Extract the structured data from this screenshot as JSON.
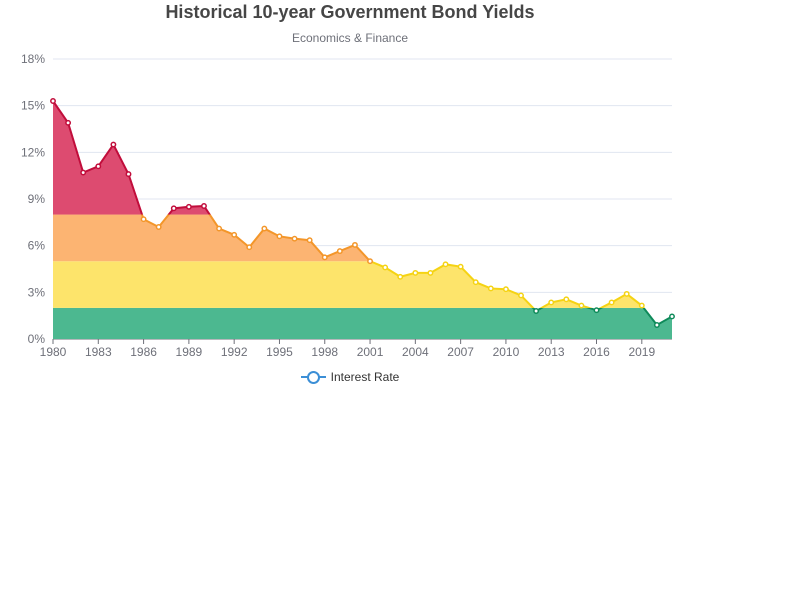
{
  "chart_data": {
    "type": "area",
    "title": "Historical 10-year Government Bond Yields",
    "subtitle": "Economics & Finance",
    "xlabel": "",
    "ylabel": "",
    "x": [
      1980,
      1981,
      1982,
      1983,
      1984,
      1985,
      1986,
      1987,
      1988,
      1989,
      1990,
      1991,
      1992,
      1993,
      1994,
      1995,
      1996,
      1997,
      1998,
      1999,
      2000,
      2001,
      2002,
      2003,
      2004,
      2005,
      2006,
      2007,
      2008,
      2009,
      2010,
      2011,
      2012,
      2013,
      2014,
      2015,
      2016,
      2017,
      2018,
      2019,
      2020,
      2021
    ],
    "series": [
      {
        "name": "Interest Rate",
        "values": [
          15.3,
          13.9,
          10.7,
          11.1,
          12.5,
          10.6,
          7.7,
          7.2,
          8.4,
          8.5,
          8.55,
          7.1,
          6.7,
          5.9,
          7.1,
          6.6,
          6.45,
          6.35,
          5.25,
          5.65,
          6.05,
          5.0,
          4.6,
          4.0,
          4.25,
          4.25,
          4.8,
          4.65,
          3.65,
          3.25,
          3.2,
          2.8,
          1.8,
          2.35,
          2.55,
          2.15,
          1.85,
          2.35,
          2.9,
          2.15,
          0.9,
          1.45
        ]
      }
    ],
    "xlim": [
      1980,
      2021
    ],
    "ylim": [
      0,
      18
    ],
    "xticks": [
      "1980",
      "1983",
      "1986",
      "1989",
      "1992",
      "1995",
      "1998",
      "2001",
      "2004",
      "2007",
      "2010",
      "2013",
      "2016",
      "2019"
    ],
    "yticks": [
      "0%",
      "3%",
      "6%",
      "9%",
      "12%",
      "15%",
      "18%"
    ],
    "ytick_values": [
      0,
      3,
      6,
      9,
      12,
      15,
      18
    ],
    "bands": [
      {
        "from": 0,
        "to": 2,
        "line_color": "#0f8a5a",
        "fill_color": "#4cb890"
      },
      {
        "from": 2,
        "to": 5,
        "line_color": "#f5d313",
        "fill_color": "#fde46b"
      },
      {
        "from": 5,
        "to": 8,
        "line_color": "#f3962a",
        "fill_color": "#fcb472"
      },
      {
        "from": 8,
        "to": 18,
        "line_color": "#c10d3b",
        "fill_color": "#dd4b70"
      }
    ],
    "grid": true,
    "legend": {
      "label": "Interest Rate",
      "placement": "bottom-center",
      "color": "#3c8fd6"
    }
  }
}
